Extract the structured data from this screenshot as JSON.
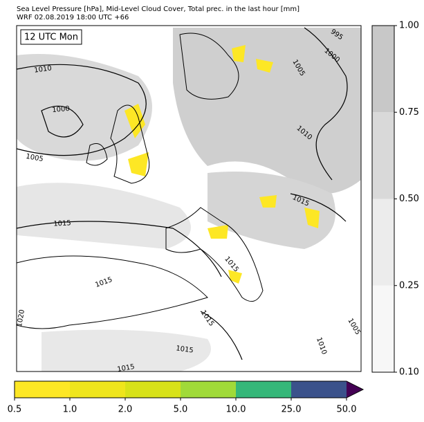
{
  "header": {
    "title": "Sea Level Pressure [hPa], Mid-Level Cloud Cover, Total prec. in the last hour [mm]",
    "subtitle": "WRF 02.08.2019 18:00 UTC +66"
  },
  "map": {
    "time_label": "12 UTC Mon",
    "contour_labels": [
      "1010",
      "1000",
      "1005",
      "1015",
      "995",
      "1000",
      "1005",
      "1010",
      "1015",
      "1015",
      "1015",
      "1015",
      "1020",
      "1015",
      "1010",
      "1005",
      "1015"
    ]
  },
  "cloud_colorbar": {
    "colors": [
      "#f7f7f7",
      "#ececec",
      "#d9d9d9",
      "#c8c8c8"
    ],
    "ticks": [
      {
        "value": 0.1,
        "label": "0.10"
      },
      {
        "value": 0.25,
        "label": "0.25"
      },
      {
        "value": 0.5,
        "label": "0.50"
      },
      {
        "value": 0.75,
        "label": "0.75"
      },
      {
        "value": 1,
        "label": "1.00"
      }
    ]
  },
  "precip_colorbar": {
    "colors": [
      "#fde725",
      "#efe51c",
      "#d8e219",
      "#a0da39",
      "#35b779",
      "#3b528b"
    ],
    "extend_color": "#440154",
    "ticks": [
      0.5,
      {
        "value": 1,
        "label": "1.0"
      },
      {
        "value": 2,
        "label": "2.0"
      },
      {
        "value": 5,
        "label": "5.0"
      },
      {
        "value": 10,
        "label": "10.0"
      },
      {
        "value": 25,
        "label": "25.0"
      },
      {
        "value": 50,
        "label": "50.0"
      }
    ]
  }
}
